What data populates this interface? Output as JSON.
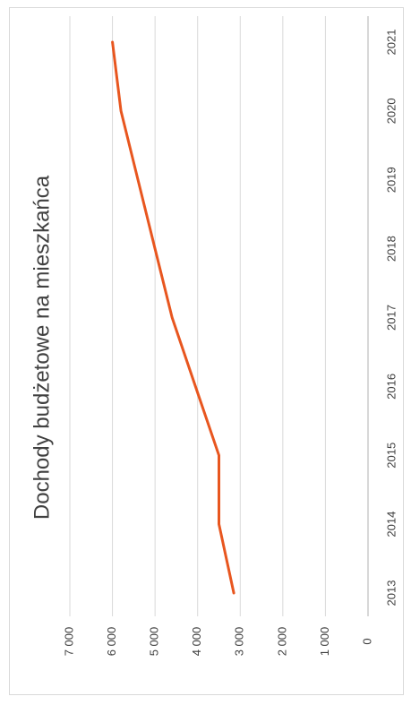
{
  "chart_data": {
    "type": "line",
    "title": "Dochody budżetowe na mieszkańca",
    "xlabel": "",
    "ylabel": "",
    "x": [
      "2013",
      "2014",
      "2015",
      "2016",
      "2017",
      "2018",
      "2019",
      "2020",
      "2021"
    ],
    "series": [
      {
        "values": [
          3150,
          3500,
          3500,
          4050,
          4600,
          5000,
          5400,
          5800,
          6000
        ],
        "color": "#e8561f"
      }
    ],
    "ylim": [
      0,
      7000
    ],
    "yticks": [
      "0",
      "1 000",
      "2 000",
      "3 000",
      "4 000",
      "5 000",
      "6 000",
      "7 000"
    ],
    "grid": true,
    "legend": "none",
    "orientation": "rotated-90-clockwise"
  }
}
